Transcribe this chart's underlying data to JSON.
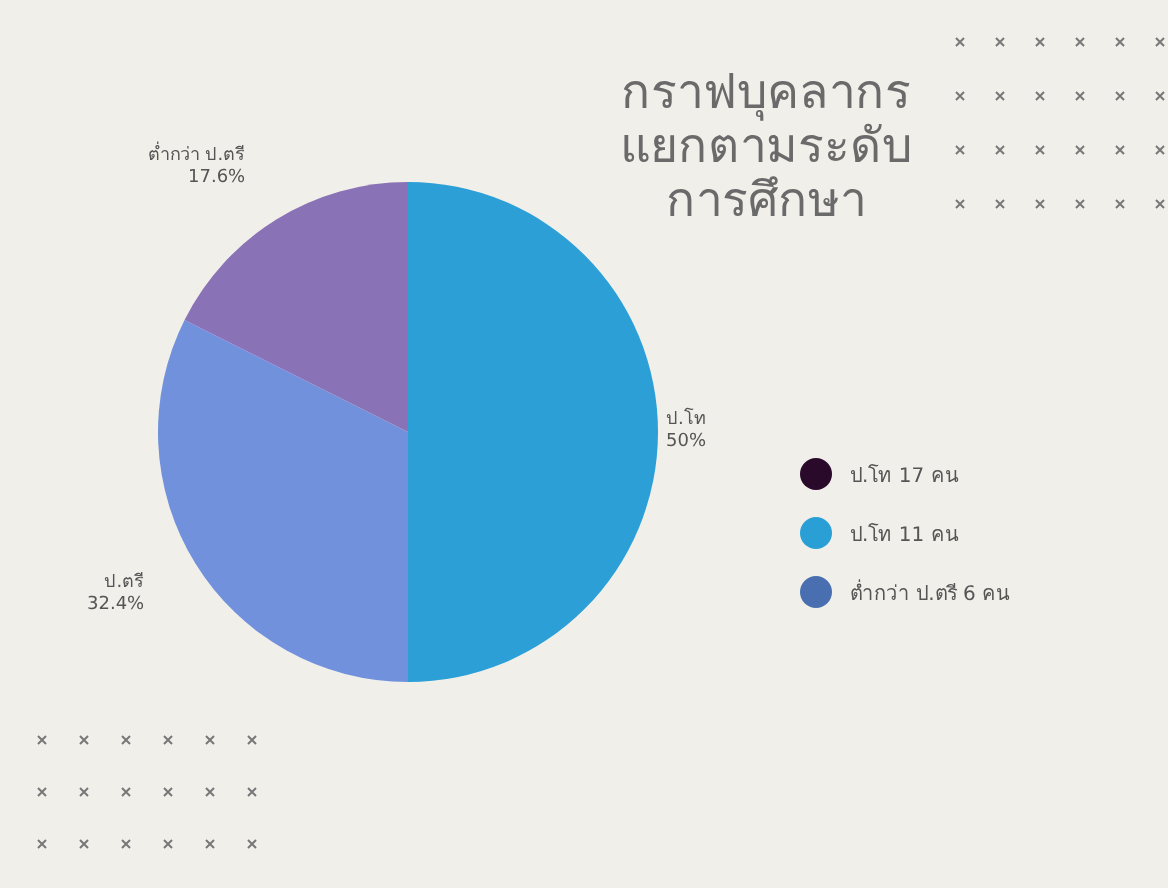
{
  "chart_data": {
    "type": "pie",
    "title": "กราฟบุคลากร แยกตามระดับ การศึกษา",
    "categories": [
      "ป.โท",
      "ป.ตรี",
      "ต่ำกว่า ป.ตรี"
    ],
    "values": [
      50,
      32.4,
      17.6
    ],
    "colors": [
      "#2b9fd6",
      "#7191dc",
      "#8a72b6"
    ],
    "value_labels": [
      "50%",
      "32.4%",
      "17.6%"
    ],
    "annotations": [
      "ป.โท 17 คน",
      "ป.โท 11 คน",
      "ต่ำกว่า ป.ตรี 6 คน"
    ]
  }
}
